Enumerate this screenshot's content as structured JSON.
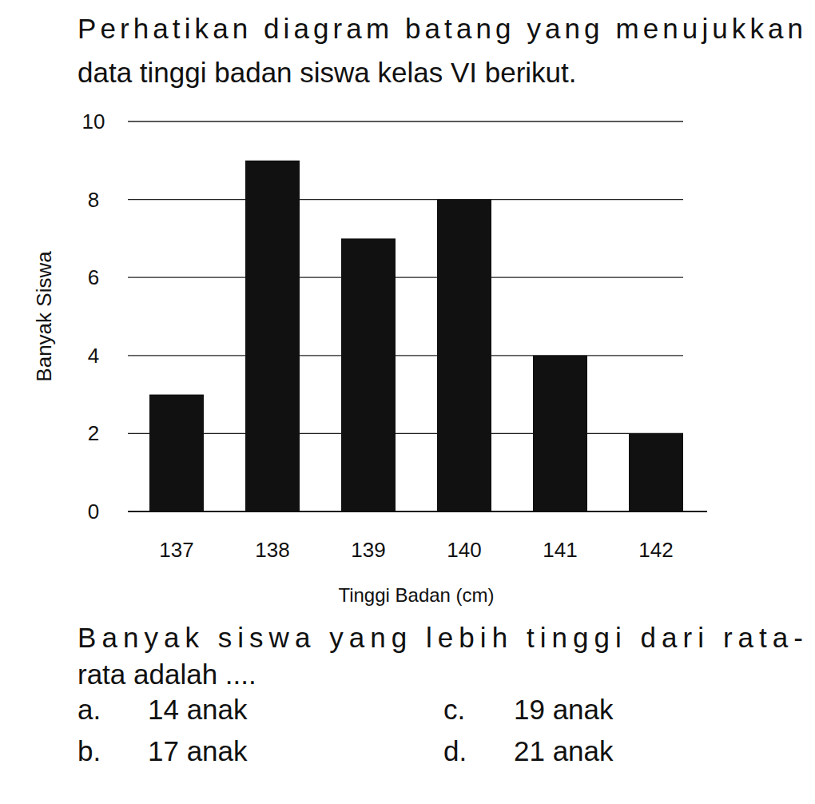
{
  "header": {
    "lines": [
      "Perhatikan diagram batang yang menujukkan",
      "data tinggi badan siswa kelas VI berikut."
    ]
  },
  "chart_data": {
    "type": "bar",
    "x_label": "Tinggi Badan (cm)",
    "y_label": "Banyak Siswa",
    "categories": [
      "137",
      "138",
      "139",
      "140",
      "141",
      "142"
    ],
    "values": [
      3,
      9,
      7,
      8,
      4,
      2
    ],
    "color": "#111111",
    "ylim": [
      0,
      10
    ],
    "yticks": [
      0,
      2,
      4,
      6,
      8,
      10
    ],
    "grid": true
  },
  "question": {
    "lines": [
      "Banyak siswa yang lebih tinggi dari rata-",
      "rata adalah ...."
    ]
  },
  "options": [
    {
      "letter": "a.",
      "text": "14 anak"
    },
    {
      "letter": "b.",
      "text": "17 anak"
    },
    {
      "letter": "c.",
      "text": "19 anak"
    },
    {
      "letter": "d.",
      "text": "21 anak"
    }
  ]
}
